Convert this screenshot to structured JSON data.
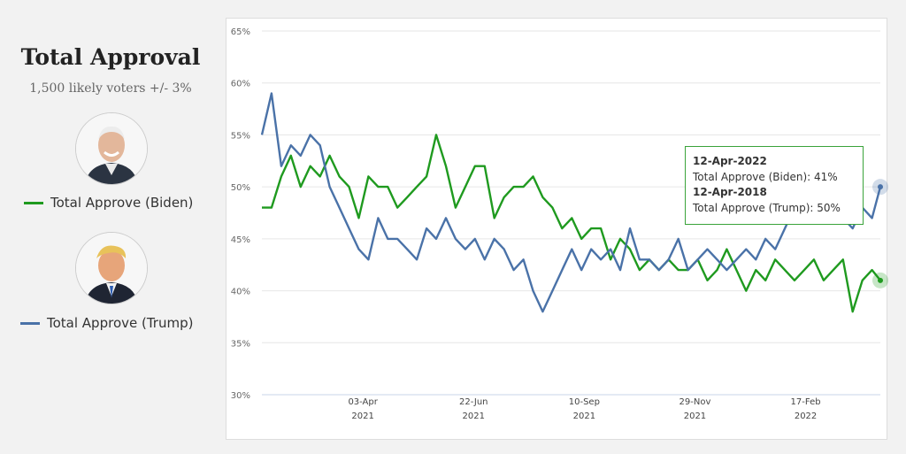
{
  "sidebar": {
    "title": "Total Approval",
    "subtitle": "1,500 likely voters +/- 3%",
    "legend": [
      {
        "label": "Total Approve (Biden)",
        "color": "#1f9a1f",
        "portrait_icon": "biden-portrait-icon"
      },
      {
        "label": "Total Approve (Trump)",
        "color": "#4a72a8",
        "portrait_icon": "trump-portrait-icon"
      }
    ]
  },
  "tooltip": {
    "date1": "12-Apr-2022",
    "line1": "Total Approve (Biden): 41%",
    "date2": "12-Apr-2018",
    "line2": "Total Approve (Trump): 50%"
  },
  "chart_data": {
    "type": "line",
    "title": "",
    "xlabel": "",
    "ylabel": "",
    "ylim": [
      30,
      65
    ],
    "y_ticks": [
      "30%",
      "35%",
      "40%",
      "45%",
      "50%",
      "55%",
      "60%",
      "65%"
    ],
    "x_ticks": [
      {
        "line1": "03-Apr",
        "line2": "2021",
        "date": "2021-04-03"
      },
      {
        "line1": "22-Jun",
        "line2": "2021",
        "date": "2021-06-22"
      },
      {
        "line1": "10-Sep",
        "line2": "2021",
        "date": "2021-09-10"
      },
      {
        "line1": "29-Nov",
        "line2": "2021",
        "date": "2021-11-29"
      },
      {
        "line1": "17-Feb",
        "line2": "2022",
        "date": "2022-02-17"
      }
    ],
    "x_range": [
      "2021-01-20",
      "2022-04-12"
    ],
    "grid": true,
    "series": [
      {
        "name": "Total Approve (Biden)",
        "color": "#1f9a1f",
        "x": [
          "2021-01-20",
          "2021-01-27",
          "2021-02-03",
          "2021-02-10",
          "2021-02-17",
          "2021-02-24",
          "2021-03-03",
          "2021-03-10",
          "2021-03-17",
          "2021-03-24",
          "2021-03-31",
          "2021-04-07",
          "2021-04-14",
          "2021-04-21",
          "2021-04-28",
          "2021-05-05",
          "2021-05-12",
          "2021-05-19",
          "2021-05-26",
          "2021-06-02",
          "2021-06-09",
          "2021-06-16",
          "2021-06-23",
          "2021-06-30",
          "2021-07-07",
          "2021-07-14",
          "2021-07-21",
          "2021-07-28",
          "2021-08-04",
          "2021-08-11",
          "2021-08-18",
          "2021-08-25",
          "2021-09-01",
          "2021-09-08",
          "2021-09-15",
          "2021-09-22",
          "2021-09-29",
          "2021-10-06",
          "2021-10-13",
          "2021-10-20",
          "2021-10-27",
          "2021-11-03",
          "2021-11-10",
          "2021-11-17",
          "2021-11-24",
          "2021-12-01",
          "2021-12-08",
          "2021-12-15",
          "2021-12-22",
          "2021-12-29",
          "2022-01-05",
          "2022-01-12",
          "2022-01-19",
          "2022-01-26",
          "2022-02-02",
          "2022-02-09",
          "2022-02-16",
          "2022-02-23",
          "2022-03-02",
          "2022-03-09",
          "2022-03-16",
          "2022-03-23",
          "2022-03-30",
          "2022-04-06",
          "2022-04-12"
        ],
        "values": [
          48,
          48,
          51,
          53,
          50,
          52,
          51,
          53,
          51,
          50,
          47,
          51,
          50,
          50,
          48,
          49,
          50,
          51,
          55,
          52,
          48,
          50,
          52,
          52,
          47,
          49,
          50,
          50,
          51,
          49,
          48,
          46,
          47,
          45,
          46,
          46,
          43,
          45,
          44,
          42,
          43,
          42,
          43,
          42,
          42,
          43,
          41,
          42,
          44,
          42,
          40,
          42,
          41,
          43,
          42,
          41,
          42,
          43,
          41,
          42,
          43,
          38,
          41,
          42,
          41
        ]
      },
      {
        "name": "Total Approve (Trump)",
        "color": "#4a72a8",
        "x": [
          "2021-01-20",
          "2021-01-27",
          "2021-02-03",
          "2021-02-10",
          "2021-02-17",
          "2021-02-24",
          "2021-03-03",
          "2021-03-10",
          "2021-03-17",
          "2021-03-24",
          "2021-03-31",
          "2021-04-07",
          "2021-04-14",
          "2021-04-21",
          "2021-04-28",
          "2021-05-05",
          "2021-05-12",
          "2021-05-19",
          "2021-05-26",
          "2021-06-02",
          "2021-06-09",
          "2021-06-16",
          "2021-06-23",
          "2021-06-30",
          "2021-07-07",
          "2021-07-14",
          "2021-07-21",
          "2021-07-28",
          "2021-08-04",
          "2021-08-11",
          "2021-08-18",
          "2021-08-25",
          "2021-09-01",
          "2021-09-08",
          "2021-09-15",
          "2021-09-22",
          "2021-09-29",
          "2021-10-06",
          "2021-10-13",
          "2021-10-20",
          "2021-10-27",
          "2021-11-03",
          "2021-11-10",
          "2021-11-17",
          "2021-11-24",
          "2021-12-01",
          "2021-12-08",
          "2021-12-15",
          "2021-12-22",
          "2021-12-29",
          "2022-01-05",
          "2022-01-12",
          "2022-01-19",
          "2022-01-26",
          "2022-02-02",
          "2022-02-09",
          "2022-02-16",
          "2022-02-23",
          "2022-03-02",
          "2022-03-09",
          "2022-03-16",
          "2022-03-23",
          "2022-03-30",
          "2022-04-06",
          "2022-04-12"
        ],
        "values": [
          55,
          59,
          52,
          54,
          53,
          55,
          54,
          50,
          48,
          46,
          44,
          43,
          47,
          45,
          45,
          44,
          43,
          46,
          45,
          47,
          45,
          44,
          45,
          43,
          45,
          44,
          42,
          43,
          40,
          38,
          40,
          42,
          44,
          42,
          44,
          43,
          44,
          42,
          46,
          43,
          43,
          42,
          43,
          45,
          42,
          43,
          44,
          43,
          42,
          43,
          44,
          43,
          45,
          44,
          46,
          48,
          49,
          47,
          50,
          48,
          47,
          46,
          48,
          47,
          50
        ]
      }
    ]
  }
}
